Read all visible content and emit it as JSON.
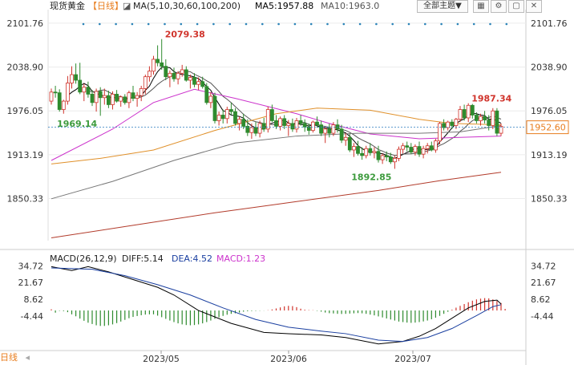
{
  "header": {
    "symbol": "现货黄金",
    "period": "【日线】",
    "ma_label": "MA(5,10,30,60,100,200)",
    "ma5_label": "MA5:1957.88",
    "ma10_label": "MA10:1963.0",
    "theme_button": "全部主题▼",
    "tool_icons": [
      "grid-icon",
      "settings-icon",
      "window-icon",
      "close-icon"
    ],
    "tool_glyphs": [
      "▦",
      "⚙",
      "▢",
      "✕"
    ]
  },
  "macd_header": {
    "title": "MACD(26,12,9)",
    "diff": "DIFF:5.14",
    "dea": "DEA:4.52",
    "macd": "MACD:1.23"
  },
  "bottom": {
    "label": "日线",
    "arrow": "◂"
  },
  "colors": {
    "up": "#d0342c",
    "down": "#2e8b2e",
    "ma5": "#000000",
    "ma10": "#555555",
    "ma30": "#cc33cc",
    "ma60": "#e0902a",
    "ma100": "#777777",
    "ma200": "#b23b2b",
    "current_line": "#2b7bbd",
    "high_label": "#d0342c",
    "low_label": "#3d9b3d",
    "axis_text": "#333333"
  },
  "chart_data": [
    {
      "type": "candlestick",
      "title": "现货黄金 【日线】",
      "y_ticks": [
        2101.76,
        2038.9,
        1976.05,
        1913.19,
        1850.33
      ],
      "ylim": [
        1790,
        2112
      ],
      "x_ticks": [
        "2023/05",
        "2023/06",
        "2023/07"
      ],
      "current_price": 1952.6,
      "annotations": [
        {
          "text": "2079.38",
          "value": 2079.38,
          "index": 27,
          "type": "high"
        },
        {
          "text": "1969.14",
          "value": 1969.14,
          "index": 12,
          "type": "low"
        },
        {
          "text": "1892.85",
          "value": 1892.85,
          "index": 84,
          "type": "low"
        },
        {
          "text": "1987.34",
          "value": 1987.34,
          "index": 102,
          "type": "high"
        }
      ],
      "candles": [
        [
          1990,
          2008,
          1985,
          2003
        ],
        [
          2003,
          2012,
          1995,
          2002
        ],
        [
          2002,
          2007,
          1975,
          1978
        ],
        [
          1978,
          1992,
          1972,
          1990
        ],
        [
          1990,
          2026,
          1985,
          2016
        ],
        [
          2016,
          2040,
          2008,
          2028
        ],
        [
          2028,
          2044,
          2015,
          2020
        ],
        [
          2020,
          2045,
          2000,
          2003
        ],
        [
          2003,
          2015,
          1990,
          2010
        ],
        [
          2010,
          2018,
          1995,
          2000
        ],
        [
          2000,
          2006,
          1983,
          1988
        ],
        [
          1988,
          2008,
          1975,
          2004
        ],
        [
          2004,
          2010,
          1969,
          1995
        ],
        [
          1995,
          2008,
          1985,
          1998
        ],
        [
          1998,
          2005,
          1980,
          1985
        ],
        [
          1985,
          2004,
          1978,
          2000
        ],
        [
          2000,
          2006,
          1988,
          1990
        ],
        [
          1990,
          1998,
          1982,
          1996
        ],
        [
          1996,
          2000,
          1985,
          1988
        ],
        [
          1988,
          2005,
          1980,
          2002
        ],
        [
          2002,
          2012,
          1990,
          1994
        ],
        [
          1994,
          2003,
          1982,
          1998
        ],
        [
          1998,
          2012,
          1990,
          2008
        ],
        [
          2008,
          2028,
          2000,
          2025
        ],
        [
          2025,
          2040,
          2018,
          2033
        ],
        [
          2033,
          2055,
          2028,
          2050
        ],
        [
          2050,
          2070,
          2040,
          2045
        ],
        [
          2045,
          2079,
          2035,
          2040
        ],
        [
          2040,
          2050,
          2020,
          2025
        ],
        [
          2025,
          2034,
          2010,
          2030
        ],
        [
          2030,
          2038,
          2018,
          2022
        ],
        [
          2022,
          2033,
          2014,
          2030
        ],
        [
          2030,
          2042,
          2025,
          2035
        ],
        [
          2035,
          2040,
          2018,
          2020
        ],
        [
          2020,
          2028,
          2008,
          2024
        ],
        [
          2024,
          2030,
          2010,
          2014
        ],
        [
          2014,
          2024,
          2006,
          2018
        ],
        [
          2018,
          2025,
          2008,
          2011
        ],
        [
          2011,
          2016,
          1985,
          1988
        ],
        [
          1988,
          2003,
          1980,
          1997
        ],
        [
          1997,
          2002,
          1958,
          1962
        ],
        [
          1962,
          1975,
          1955,
          1970
        ],
        [
          1970,
          1978,
          1958,
          1965
        ],
        [
          1965,
          1982,
          1958,
          1978
        ],
        [
          1978,
          1988,
          1970,
          1975
        ],
        [
          1975,
          1980,
          1955,
          1958
        ],
        [
          1958,
          1968,
          1948,
          1964
        ],
        [
          1964,
          1972,
          1950,
          1954
        ],
        [
          1954,
          1964,
          1940,
          1945
        ],
        [
          1945,
          1958,
          1936,
          1952
        ],
        [
          1952,
          1960,
          1940,
          1944
        ],
        [
          1944,
          1962,
          1938,
          1958
        ],
        [
          1958,
          1966,
          1946,
          1950
        ],
        [
          1950,
          1982,
          1945,
          1978
        ],
        [
          1978,
          1985,
          1960,
          1962
        ],
        [
          1962,
          1970,
          1950,
          1954
        ],
        [
          1954,
          1968,
          1948,
          1965
        ],
        [
          1965,
          1970,
          1950,
          1955
        ],
        [
          1955,
          1963,
          1940,
          1958
        ],
        [
          1958,
          1965,
          1946,
          1950
        ],
        [
          1950,
          1966,
          1945,
          1962
        ],
        [
          1962,
          1970,
          1955,
          1958
        ],
        [
          1958,
          1964,
          1946,
          1953
        ],
        [
          1953,
          1958,
          1942,
          1948
        ],
        [
          1948,
          1962,
          1945,
          1960
        ],
        [
          1960,
          1968,
          1952,
          1956
        ],
        [
          1956,
          1962,
          1940,
          1944
        ],
        [
          1944,
          1953,
          1930,
          1950
        ],
        [
          1950,
          1958,
          1938,
          1944
        ],
        [
          1944,
          1960,
          1940,
          1956
        ],
        [
          1956,
          1964,
          1945,
          1950
        ],
        [
          1950,
          1956,
          1930,
          1934
        ],
        [
          1934,
          1944,
          1926,
          1938
        ],
        [
          1938,
          1943,
          1917,
          1920
        ],
        [
          1920,
          1930,
          1910,
          1925
        ],
        [
          1925,
          1933,
          1912,
          1915
        ],
        [
          1915,
          1924,
          1906,
          1912
        ],
        [
          1912,
          1926,
          1908,
          1922
        ],
        [
          1922,
          1930,
          1912,
          1916
        ],
        [
          1916,
          1924,
          1908,
          1918
        ],
        [
          1918,
          1926,
          1902,
          1906
        ],
        [
          1906,
          1915,
          1900,
          1912
        ],
        [
          1912,
          1918,
          1904,
          1910
        ],
        [
          1910,
          1916,
          1900,
          1903
        ],
        [
          1903,
          1912,
          1893,
          1908
        ],
        [
          1908,
          1925,
          1904,
          1921
        ],
        [
          1921,
          1930,
          1915,
          1926
        ],
        [
          1926,
          1932,
          1918,
          1924
        ],
        [
          1924,
          1930,
          1914,
          1917
        ],
        [
          1917,
          1928,
          1912,
          1925
        ],
        [
          1925,
          1932,
          1910,
          1914
        ],
        [
          1914,
          1926,
          1908,
          1922
        ],
        [
          1922,
          1930,
          1915,
          1926
        ],
        [
          1926,
          1932,
          1918,
          1920
        ],
        [
          1920,
          1936,
          1916,
          1933
        ],
        [
          1933,
          1960,
          1928,
          1958
        ],
        [
          1958,
          1964,
          1948,
          1952
        ],
        [
          1952,
          1962,
          1948,
          1960
        ],
        [
          1960,
          1964,
          1950,
          1955
        ],
        [
          1955,
          1966,
          1950,
          1964
        ],
        [
          1964,
          1983,
          1960,
          1978
        ],
        [
          1978,
          1985,
          1962,
          1966
        ],
        [
          1966,
          1987,
          1960,
          1984
        ],
        [
          1984,
          1986,
          1965,
          1970
        ],
        [
          1970,
          1974,
          1958,
          1962
        ],
        [
          1962,
          1972,
          1955,
          1968
        ],
        [
          1968,
          1976,
          1958,
          1963
        ],
        [
          1963,
          1970,
          1948,
          1955
        ],
        [
          1955,
          1980,
          1950,
          1976
        ],
        [
          1976,
          1980,
          1940,
          1944
        ],
        [
          1944,
          1958,
          1940,
          1954
        ]
      ],
      "ma_series": [
        {
          "name": "MA5",
          "key": "ma5",
          "period": 5
        },
        {
          "name": "MA10",
          "key": "ma10",
          "period": 10
        },
        {
          "name": "MA30",
          "key": "ma30",
          "points": [
            [
              0,
              1905
            ],
            [
              15,
              1950
            ],
            [
              25,
              1988
            ],
            [
              35,
              2007
            ],
            [
              45,
              1994
            ],
            [
              60,
              1972
            ],
            [
              68,
              1958
            ],
            [
              78,
              1943
            ],
            [
              90,
              1936
            ],
            [
              100,
              1938
            ],
            [
              110,
              1940
            ]
          ]
        },
        {
          "name": "MA60",
          "key": "ma60",
          "points": [
            [
              0,
              1900
            ],
            [
              12,
              1908
            ],
            [
              25,
              1920
            ],
            [
              40,
              1948
            ],
            [
              55,
              1972
            ],
            [
              65,
              1980
            ],
            [
              78,
              1977
            ],
            [
              90,
              1964
            ],
            [
              98,
              1958
            ],
            [
              110,
              1956
            ]
          ]
        },
        {
          "name": "MA100",
          "key": "ma100",
          "points": [
            [
              0,
              1850
            ],
            [
              15,
              1875
            ],
            [
              30,
              1905
            ],
            [
              45,
              1930
            ],
            [
              60,
              1940
            ],
            [
              75,
              1944
            ],
            [
              90,
              1944
            ],
            [
              100,
              1946
            ],
            [
              110,
              1955
            ]
          ]
        },
        {
          "name": "MA200",
          "key": "ma200",
          "points": [
            [
              0,
              1794
            ],
            [
              20,
              1812
            ],
            [
              40,
              1830
            ],
            [
              60,
              1846
            ],
            [
              80,
              1862
            ],
            [
              95,
              1876
            ],
            [
              110,
              1888
            ]
          ]
        }
      ]
    },
    {
      "type": "macd",
      "title": "MACD(26,12,9)",
      "y_ticks": [
        34.72,
        21.67,
        8.62,
        -4.44
      ],
      "ylim": [
        -28,
        38
      ],
      "DIFF": 5.14,
      "DEA": 4.52,
      "MACD": 1.23,
      "diff_points": [
        [
          0,
          34
        ],
        [
          5,
          31
        ],
        [
          9,
          34
        ],
        [
          14,
          30
        ],
        [
          20,
          24
        ],
        [
          26,
          18
        ],
        [
          30,
          12
        ],
        [
          36,
          0
        ],
        [
          44,
          -10
        ],
        [
          52,
          -17
        ],
        [
          58,
          -18
        ],
        [
          66,
          -19
        ],
        [
          72,
          -21
        ],
        [
          80,
          -26
        ],
        [
          86,
          -24
        ],
        [
          90,
          -20
        ],
        [
          94,
          -14
        ],
        [
          98,
          -6
        ],
        [
          102,
          2
        ],
        [
          106,
          7
        ],
        [
          109,
          8
        ],
        [
          110,
          5
        ]
      ],
      "dea_points": [
        [
          0,
          33
        ],
        [
          10,
          32
        ],
        [
          18,
          27
        ],
        [
          26,
          20
        ],
        [
          34,
          12
        ],
        [
          42,
          2
        ],
        [
          50,
          -7
        ],
        [
          58,
          -13
        ],
        [
          66,
          -16
        ],
        [
          72,
          -18
        ],
        [
          80,
          -23
        ],
        [
          86,
          -24
        ],
        [
          92,
          -21
        ],
        [
          98,
          -14
        ],
        [
          104,
          -4
        ],
        [
          108,
          3
        ],
        [
          110,
          4.5
        ]
      ],
      "histogram": [
        0.9,
        -1.7,
        -0.3,
        -0.5,
        -1.3,
        -3.0,
        -4.5,
        -6.3,
        -8.0,
        -9.5,
        -10.5,
        -11.5,
        -12.0,
        -12.0,
        -11.5,
        -10.8,
        -9.8,
        -8.6,
        -7.3,
        -6.0,
        -5.0,
        -4.3,
        -3.7,
        -3.2,
        -3.0,
        -3.0,
        -4.0,
        -5.2,
        -6.5,
        -7.8,
        -9.0,
        -10.0,
        -10.8,
        -11.3,
        -11.5,
        -11.3,
        -10.8,
        -10.0,
        -9.0,
        -7.8,
        -6.5,
        -5.3,
        -4.2,
        -3.3,
        -2.6,
        -2.2,
        -1.6,
        -0.9,
        -0.6,
        -0.4,
        -0.3,
        -0.2,
        -0.1,
        0.2,
        0.8,
        1.6,
        2.4,
        3.2,
        3.6,
        3.4,
        2.6,
        1.4,
        0.6,
        0.3,
        0.2,
        -0.3,
        -0.9,
        -1.6,
        -2.1,
        -2.3,
        -2.6,
        -2.7,
        -2.6,
        -2.4,
        -2.2,
        -2.0,
        -2.2,
        -2.6,
        -3.2,
        -3.8,
        -4.6,
        -5.4,
        -6.2,
        -7.0,
        -7.8,
        -8.6,
        -9.0,
        -9.4,
        -9.6,
        -9.4,
        -9.0,
        -8.5,
        -7.8,
        -6.8,
        -5.6,
        -4.2,
        -2.6,
        -1.0,
        0.6,
        2.2,
        3.6,
        5.0,
        6.4,
        7.6,
        8.6,
        9.2,
        9.6,
        9.4,
        8.6,
        7.4,
        5.8,
        1.2
      ]
    }
  ]
}
